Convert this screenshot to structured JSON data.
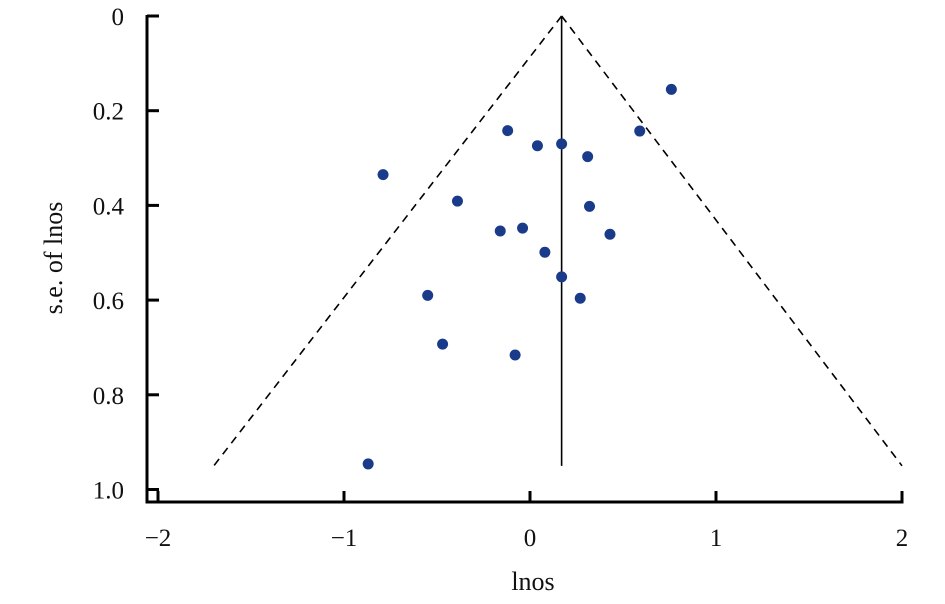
{
  "chart_data": {
    "type": "scatter",
    "title": "",
    "xlabel": "lnos",
    "ylabel": "s.e. of lnos",
    "xlim": [
      -2.05,
      2.0
    ],
    "ylim": [
      0,
      1.03
    ],
    "y_inverted": true,
    "grid": false,
    "x_ticks": [
      -2,
      -1,
      0,
      1,
      2
    ],
    "x_tick_labels": [
      "−2",
      "−1",
      "0",
      "1",
      "2"
    ],
    "y_ticks": [
      0,
      0.2,
      0.4,
      0.6,
      0.8,
      1.0
    ],
    "y_tick_labels": [
      "0",
      "0.2",
      "0.4",
      "0.6",
      "0.8",
      "1.0"
    ],
    "pooled_estimate": 0.17,
    "funnel_apex": [
      0.17,
      0
    ],
    "funnel_left_end": [
      -1.7,
      0.95
    ],
    "funnel_right_end": [
      2.0,
      0.95
    ],
    "marker_color": "#1a3a8a",
    "line_color": "#000000",
    "series": [
      {
        "points": [
          [
            0.76,
            0.155
          ],
          [
            -0.12,
            0.242
          ],
          [
            0.59,
            0.243
          ],
          [
            0.04,
            0.274
          ],
          [
            0.17,
            0.27
          ],
          [
            0.31,
            0.297
          ],
          [
            -0.79,
            0.335
          ],
          [
            -0.39,
            0.391
          ],
          [
            0.32,
            0.402
          ],
          [
            -0.04,
            0.448
          ],
          [
            -0.16,
            0.454
          ],
          [
            0.43,
            0.461
          ],
          [
            0.08,
            0.499
          ],
          [
            0.17,
            0.551
          ],
          [
            -0.55,
            0.59
          ],
          [
            0.27,
            0.596
          ],
          [
            -0.47,
            0.693
          ],
          [
            -0.08,
            0.716
          ],
          [
            -0.87,
            0.946
          ]
        ]
      }
    ]
  }
}
